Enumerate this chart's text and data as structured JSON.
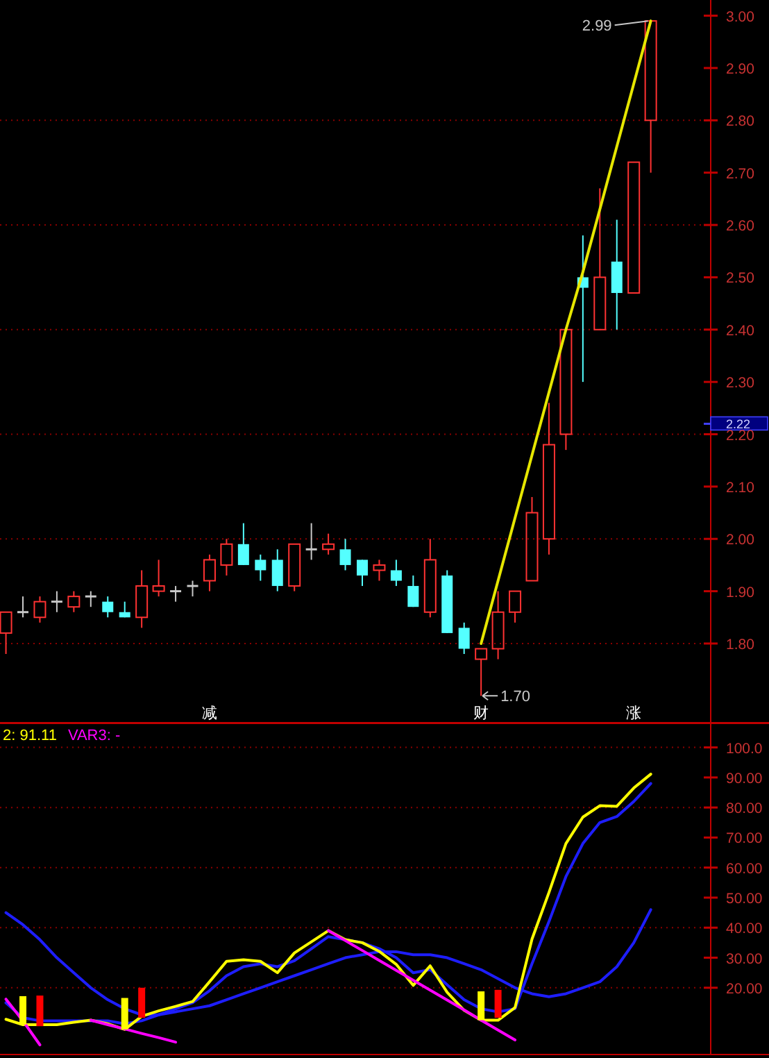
{
  "chart_data": [
    {
      "type": "candlestick",
      "categories": [
        null,
        null,
        null,
        null,
        null,
        null,
        null,
        null,
        null,
        null,
        null,
        null,
        "减",
        null,
        null,
        null,
        null,
        null,
        null,
        null,
        null,
        null,
        null,
        null,
        null,
        null,
        null,
        null,
        "财",
        null,
        null,
        null,
        null,
        null,
        null,
        null,
        null,
        "涨",
        null
      ],
      "ohlc": [
        [
          1.82,
          1.86,
          1.78,
          1.86
        ],
        [
          1.86,
          1.89,
          1.85,
          1.86
        ],
        [
          1.85,
          1.89,
          1.84,
          1.88
        ],
        [
          1.88,
          1.9,
          1.86,
          1.88
        ],
        [
          1.87,
          1.9,
          1.86,
          1.89
        ],
        [
          1.89,
          1.9,
          1.87,
          1.89
        ],
        [
          1.88,
          1.89,
          1.85,
          1.86
        ],
        [
          1.86,
          1.88,
          1.85,
          1.85
        ],
        [
          1.85,
          1.94,
          1.83,
          1.91
        ],
        [
          1.9,
          1.96,
          1.89,
          1.91
        ],
        [
          1.9,
          1.91,
          1.88,
          1.9
        ],
        [
          1.91,
          1.92,
          1.89,
          1.91
        ],
        [
          1.92,
          1.97,
          1.9,
          1.96
        ],
        [
          1.95,
          2.0,
          1.93,
          1.99
        ],
        [
          1.99,
          2.03,
          1.95,
          1.95
        ],
        [
          1.96,
          1.97,
          1.92,
          1.94
        ],
        [
          1.96,
          1.98,
          1.9,
          1.91
        ],
        [
          1.91,
          1.99,
          1.9,
          1.99
        ],
        [
          1.98,
          2.03,
          1.96,
          1.98
        ],
        [
          1.98,
          2.01,
          1.97,
          1.99
        ],
        [
          1.98,
          2.0,
          1.94,
          1.95
        ],
        [
          1.96,
          1.96,
          1.91,
          1.93
        ],
        [
          1.94,
          1.96,
          1.92,
          1.95
        ],
        [
          1.94,
          1.96,
          1.91,
          1.92
        ],
        [
          1.91,
          1.93,
          1.87,
          1.87
        ],
        [
          1.86,
          2.0,
          1.85,
          1.96
        ],
        [
          1.93,
          1.94,
          1.82,
          1.82
        ],
        [
          1.83,
          1.84,
          1.78,
          1.79
        ],
        [
          1.77,
          1.79,
          1.7,
          1.79
        ],
        [
          1.79,
          1.9,
          1.77,
          1.86
        ],
        [
          1.86,
          1.9,
          1.84,
          1.9
        ],
        [
          1.92,
          2.08,
          1.92,
          2.05
        ],
        [
          2.0,
          2.26,
          1.97,
          2.18
        ],
        [
          2.2,
          2.4,
          2.17,
          2.4
        ],
        [
          2.5,
          2.58,
          2.3,
          2.48
        ],
        [
          2.4,
          2.67,
          2.4,
          2.5
        ],
        [
          2.53,
          2.61,
          2.4,
          2.47
        ],
        [
          2.47,
          2.72,
          2.47,
          2.72
        ],
        [
          2.8,
          2.99,
          2.7,
          2.99
        ]
      ],
      "colors": [
        "#ff3232",
        "#c8c8c8",
        "#ff3232",
        "#c8c8c8",
        "#ff3232",
        "#c8c8c8",
        "#54ffff",
        "#54ffff",
        "#ff3232",
        "#ff3232",
        "#c8c8c8",
        "#c8c8c8",
        "#ff3232",
        "#ff3232",
        "#54ffff",
        "#54ffff",
        "#54ffff",
        "#ff3232",
        "#c8c8c8",
        "#ff3232",
        "#54ffff",
        "#54ffff",
        "#ff3232",
        "#54ffff",
        "#54ffff",
        "#ff3232",
        "#54ffff",
        "#54ffff",
        "#ff3232",
        "#ff3232",
        "#ff3232",
        "#ff3232",
        "#ff3232",
        "#ff3232",
        "#54ffff",
        "#ff3232",
        "#54ffff",
        "#ff3232",
        "#ff3232"
      ],
      "series": [
        {
          "type": "line",
          "color": "#e6e600",
          "values": [
            null,
            null,
            null,
            null,
            null,
            null,
            null,
            null,
            null,
            null,
            null,
            null,
            null,
            null,
            null,
            null,
            null,
            null,
            null,
            null,
            null,
            null,
            null,
            null,
            null,
            null,
            null,
            null,
            1.8,
            1.92,
            2.04,
            2.16,
            2.28,
            2.4,
            2.51,
            2.63,
            2.75,
            2.87,
            2.99
          ]
        }
      ],
      "ylim": [
        1.65,
        3.03
      ],
      "yticks": [
        {
          "value": 3.0,
          "label": "3.00"
        },
        {
          "value": 2.9,
          "label": "2.90"
        },
        {
          "value": 2.8,
          "label": "2.80"
        },
        {
          "value": 2.7,
          "label": "2.70"
        },
        {
          "value": 2.6,
          "label": "2.60"
        },
        {
          "value": 2.5,
          "label": "2.50"
        },
        {
          "value": 2.4,
          "label": "2.40"
        },
        {
          "value": 2.3,
          "label": "2.30"
        },
        {
          "value": 2.22,
          "label": "2.22"
        },
        {
          "value": 2.2,
          "label": "2.20"
        },
        {
          "value": 2.1,
          "label": "2.10"
        },
        {
          "value": 2.0,
          "label": "2.00"
        },
        {
          "value": 1.9,
          "label": "1.90"
        },
        {
          "value": 1.8,
          "label": "1.80"
        }
      ],
      "ref_lines": [
        {
          "axis": "y",
          "value": 2.8,
          "color": "#8b0000",
          "line_style": "dotted"
        },
        {
          "axis": "y",
          "value": 2.6,
          "color": "#8b0000",
          "line_style": "dotted"
        },
        {
          "axis": "y",
          "value": 2.4,
          "color": "#8b0000",
          "line_style": "dotted"
        },
        {
          "axis": "y",
          "value": 2.2,
          "color": "#8b0000",
          "line_style": "dotted"
        },
        {
          "axis": "y",
          "value": 2.0,
          "color": "#8b0000",
          "line_style": "dotted"
        },
        {
          "axis": "y",
          "value": 1.8,
          "color": "#8b0000",
          "line_style": "dotted"
        }
      ],
      "annotations": [
        "2.99",
        "1.70"
      ]
    },
    {
      "type": "line",
      "categories": [
        null,
        null,
        null,
        null,
        null,
        null,
        null,
        null,
        null,
        null,
        null,
        null,
        null,
        null,
        null,
        null,
        null,
        null,
        null,
        null,
        null,
        null,
        null,
        null,
        null,
        null,
        null,
        null,
        null,
        null,
        null,
        null,
        null,
        null,
        null,
        null,
        null,
        null,
        null
      ],
      "series": [
        {
          "color": "#1e1eff",
          "values": [
            45,
            41,
            36,
            30,
            25,
            20,
            16,
            13,
            11,
            11,
            12,
            13,
            14,
            16,
            18,
            20,
            22,
            24,
            26,
            28,
            30,
            31,
            32,
            32,
            31,
            31,
            30,
            28,
            26,
            23,
            20,
            18,
            17,
            18,
            20,
            22,
            27,
            35,
            46
          ]
        },
        {
          "color": "#1e1eff",
          "values": [
            15,
            10,
            9,
            9,
            9,
            9,
            9,
            8,
            9,
            11,
            13,
            15,
            19,
            24,
            27,
            28,
            27,
            29,
            33,
            37,
            36,
            35,
            33,
            30,
            25,
            26,
            21,
            16,
            13,
            12,
            13,
            28,
            42,
            57,
            68,
            75,
            77,
            82,
            88
          ]
        },
        {
          "name": "2: 91.11",
          "color": "#ffff00",
          "values": [
            9.5,
            7.7,
            7.7,
            7.7,
            8.5,
            9.2,
            8.0,
            6.1,
            10.5,
            12.3,
            13.8,
            15.4,
            22,
            28.8,
            29.3,
            28.8,
            25.0,
            31.6,
            35.3,
            39.0,
            36,
            35,
            32.1,
            27.8,
            20.8,
            27.3,
            18.5,
            12.5,
            9.2,
            9.2,
            13.4,
            36.2,
            51.7,
            68.0,
            76.8,
            80.6,
            80.4,
            86.5,
            91.11
          ]
        },
        {
          "name": "VAR3: -",
          "color": "#ff00ff",
          "values": [
            16.2,
            9,
            1.0,
            null,
            null,
            9.2,
            7.7,
            6.3,
            4.8,
            3.4,
            1.9,
            null,
            null,
            null,
            null,
            null,
            null,
            null,
            null,
            39.0,
            35.7,
            32.4,
            29.1,
            25.8,
            22.5,
            19.2,
            15.9,
            12.6,
            9.2,
            5.9,
            2.6,
            null,
            null,
            null,
            null,
            null,
            null,
            null,
            null
          ]
        },
        {
          "type": "bar",
          "color": "#ffff00",
          "values": [
            null,
            9.5,
            null,
            null,
            null,
            null,
            null,
            10.5,
            null,
            null,
            null,
            null,
            null,
            null,
            null,
            null,
            null,
            null,
            null,
            null,
            null,
            null,
            null,
            null,
            null,
            null,
            null,
            null,
            9.6,
            null,
            null,
            null,
            null,
            null,
            null,
            null,
            null,
            null,
            null
          ],
          "base": [
            null,
            7.7,
            null,
            null,
            null,
            null,
            null,
            6.1,
            null,
            null,
            null,
            null,
            null,
            null,
            null,
            null,
            null,
            null,
            null,
            null,
            null,
            null,
            null,
            null,
            null,
            null,
            null,
            null,
            9.2,
            null,
            null,
            null,
            null,
            null,
            null,
            null,
            null,
            null,
            null
          ]
        },
        {
          "type": "bar",
          "color": "#ff0000",
          "values": [
            null,
            null,
            10.2,
            null,
            null,
            null,
            null,
            null,
            10.0,
            null,
            null,
            null,
            null,
            null,
            null,
            null,
            null,
            null,
            null,
            null,
            null,
            null,
            null,
            null,
            null,
            null,
            null,
            null,
            null,
            9.3,
            null,
            null,
            null,
            null,
            null,
            null,
            null,
            null,
            null
          ],
          "base": [
            null,
            null,
            7.2,
            null,
            null,
            null,
            null,
            null,
            10.0,
            null,
            null,
            null,
            null,
            null,
            null,
            null,
            null,
            null,
            null,
            null,
            null,
            null,
            null,
            null,
            null,
            null,
            null,
            null,
            null,
            10.0,
            null,
            null,
            null,
            null,
            null,
            null,
            null,
            null,
            null
          ]
        }
      ],
      "ylim": [
        -2,
        108
      ],
      "yticks": [
        {
          "value": 100,
          "label": "100.0"
        },
        {
          "value": 90,
          "label": "90.00"
        },
        {
          "value": 80,
          "label": "80.00"
        },
        {
          "value": 70,
          "label": "70.00"
        },
        {
          "value": 60,
          "label": "60.00"
        },
        {
          "value": 50,
          "label": "50.00"
        },
        {
          "value": 40,
          "label": "40.00"
        },
        {
          "value": 30,
          "label": "30.00"
        },
        {
          "value": 20,
          "label": "20.00"
        }
      ],
      "ref_lines": [
        {
          "axis": "y",
          "value": 100,
          "color": "#8b0000",
          "line_style": "dotted"
        },
        {
          "axis": "y",
          "value": 80,
          "color": "#8b0000",
          "line_style": "dotted"
        },
        {
          "axis": "y",
          "value": 60,
          "color": "#8b0000",
          "line_style": "dotted"
        },
        {
          "axis": "y",
          "value": 40,
          "color": "#8b0000",
          "line_style": "dotted"
        },
        {
          "axis": "y",
          "value": 20,
          "color": "#8b0000",
          "line_style": "dotted"
        }
      ],
      "legend": "top left"
    }
  ]
}
